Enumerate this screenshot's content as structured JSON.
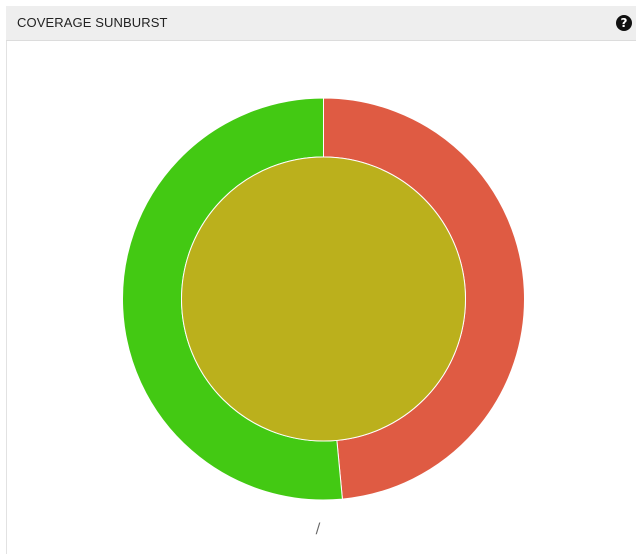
{
  "panel": {
    "title": "COVERAGE SUNBURST",
    "help_icon": "question-circle-icon",
    "breadcrumb": "/"
  },
  "chart_data": {
    "type": "sunburst",
    "title": "",
    "root": {
      "color": "#bbb01c",
      "children": [
        {
          "value": 48.5,
          "color": "#df5b43"
        },
        {
          "value": 51.5,
          "color": "#43c913"
        }
      ]
    }
  }
}
